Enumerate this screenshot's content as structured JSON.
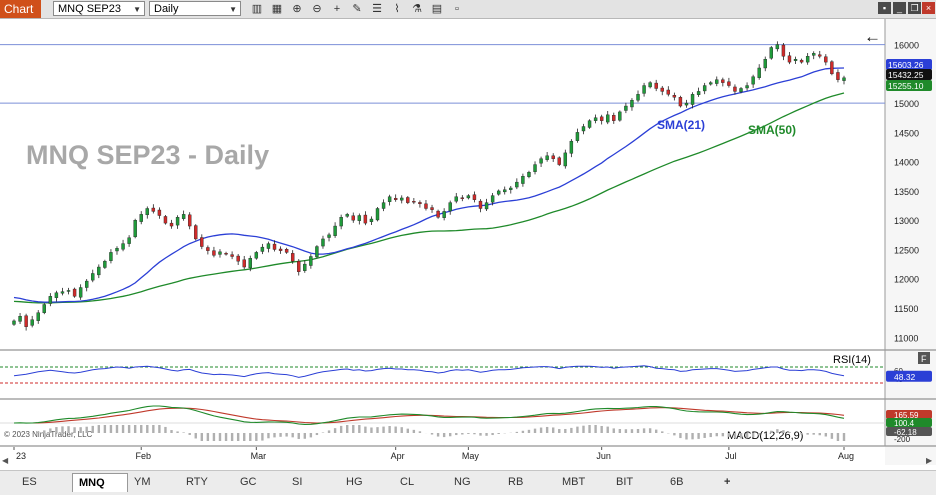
{
  "toolbar": {
    "title": "Chart",
    "instrument": "MNQ SEP23",
    "interval": "Daily",
    "tools": [
      "bars-icon",
      "bars-icon",
      "zoom-in-icon",
      "zoom-out-icon",
      "crosshair-icon",
      "pencil-icon",
      "properties-icon",
      "indicators-icon",
      "strategy-icon",
      "grid-icon",
      "hide-icon",
      "share-icon"
    ]
  },
  "chart_data": [
    {
      "type": "candlestick",
      "title": "MNQ SEP23 - Daily",
      "copyright": "© 2023 NinjaTrader, LLC",
      "ylim": [
        10800,
        16300
      ],
      "yticks": [
        11000,
        11500,
        12000,
        12500,
        13000,
        13500,
        14000,
        14500,
        15000,
        15500,
        16000
      ],
      "price_labels": [
        {
          "value": 15603.26,
          "text": "15603.26",
          "color": "#2b3fd6"
        },
        {
          "value": 15432.25,
          "text": "15432.25",
          "color": "#000000"
        },
        {
          "value": 15255.1,
          "text": "15255.10",
          "color": "#1f8a2a"
        }
      ],
      "hlines": [
        16000,
        15000
      ],
      "xticks": [
        {
          "label": "23",
          "bar": 0
        },
        {
          "label": "Feb",
          "bar": 21
        },
        {
          "label": "Mar",
          "bar": 40
        },
        {
          "label": "Apr",
          "bar": 63
        },
        {
          "label": "May",
          "bar": 75
        },
        {
          "label": "Jun",
          "bar": 97
        },
        {
          "label": "Jul",
          "bar": 118
        },
        {
          "label": "Aug",
          "bar": 137
        }
      ],
      "series": [
        {
          "name": "SMA(21)",
          "color": "#2b3fd6"
        },
        {
          "name": "SMA(50)",
          "color": "#1f8a2a"
        }
      ],
      "closes": [
        11280,
        11360,
        11180,
        11300,
        11420,
        11560,
        11700,
        11760,
        11780,
        11800,
        11700,
        11850,
        11960,
        12090,
        12200,
        12300,
        12450,
        12520,
        12600,
        12700,
        13000,
        13100,
        13200,
        13150,
        13080,
        12950,
        12900,
        13050,
        13100,
        12900,
        12680,
        12550,
        12480,
        12400,
        12460,
        12420,
        12380,
        12300,
        12200,
        12350,
        12450,
        12540,
        12600,
        12500,
        12480,
        12450,
        12300,
        12120,
        12250,
        12380,
        12550,
        12680,
        12750,
        12900,
        13050,
        13100,
        13000,
        13080,
        12950,
        13020,
        13200,
        13300,
        13400,
        13350,
        13380,
        13300,
        13320,
        13280,
        13200,
        13180,
        13050,
        13150,
        13300,
        13400,
        13380,
        13420,
        13350,
        13200,
        13300,
        13420,
        13500,
        13520,
        13550,
        13650,
        13750,
        13820,
        13950,
        14050,
        14100,
        14050,
        13950,
        14150,
        14350,
        14500,
        14600,
        14700,
        14750,
        14700,
        14800,
        14700,
        14850,
        14950,
        15050,
        15150,
        15300,
        15350,
        15250,
        15200,
        15150,
        15100,
        14950,
        15000,
        15150,
        15200,
        15300,
        15350,
        15400,
        15350,
        15300,
        15200,
        15250,
        15300,
        15450,
        15600,
        15750,
        15950,
        16000,
        15800,
        15700,
        15750,
        15700,
        15800,
        15850,
        15800,
        15700,
        15500,
        15400,
        15432
      ],
      "sma21_start": 11700,
      "sma50_start": 11620
    },
    {
      "type": "line",
      "name": "RSI(14)",
      "ylim": [
        0,
        100
      ],
      "yticks": [
        {
          "value": 60,
          "label": "60"
        },
        {
          "value": 40,
          "label": "40"
        }
      ],
      "levels": [
        70,
        30
      ],
      "last_label": "48.32",
      "values": [
        48,
        50,
        52,
        55,
        58,
        60,
        62,
        60,
        58,
        56,
        55,
        57,
        60,
        63,
        65,
        66,
        68,
        70,
        69,
        67,
        70,
        71,
        72,
        70,
        68,
        65,
        62,
        60,
        63,
        64,
        59,
        55,
        53,
        51,
        52,
        51,
        50,
        48,
        46,
        50,
        53,
        55,
        56,
        53,
        52,
        51,
        48,
        44,
        47,
        51,
        55,
        58,
        60,
        62,
        64,
        65,
        62,
        63,
        60,
        61,
        64,
        66,
        67,
        65,
        65,
        63,
        63,
        62,
        59,
        58,
        55,
        57,
        61,
        63,
        62,
        63,
        60,
        57,
        59,
        62,
        63,
        63,
        64,
        66,
        68,
        69,
        70,
        71,
        71,
        69,
        66,
        69,
        71,
        72,
        72,
        72,
        71,
        69,
        70,
        67,
        69,
        70,
        71,
        72,
        73,
        71,
        67,
        66,
        64,
        63,
        59,
        60,
        63,
        64,
        65,
        66,
        66,
        64,
        62,
        59,
        60,
        61,
        64,
        66,
        68,
        70,
        70,
        65,
        62,
        62,
        61,
        63,
        63,
        62,
        59,
        54,
        51,
        48
      ]
    },
    {
      "type": "line",
      "name": "MACD(12,26,9)",
      "yticks": [
        {
          "value": -200,
          "label": "-200"
        }
      ],
      "labels": [
        {
          "text": "165.59",
          "color": "#c0392b"
        },
        {
          "text": "100.4",
          "color": "#1f8a2a"
        },
        {
          "text": "-62.18",
          "color": "#555555"
        }
      ],
      "macd_color": "#1f8a2a",
      "signal_color": "#c0392b",
      "hist_color": "#b0b0b0"
    }
  ],
  "status": {
    "scroll_left": "◀",
    "scroll_right": "▶"
  },
  "tabs": [
    "ES",
    "MNQ",
    "YM",
    "RTY",
    "GC",
    "SI",
    "HG",
    "CL",
    "NG",
    "RB",
    "MBT",
    "BIT",
    "6B",
    "+"
  ],
  "active_tab": "MNQ"
}
